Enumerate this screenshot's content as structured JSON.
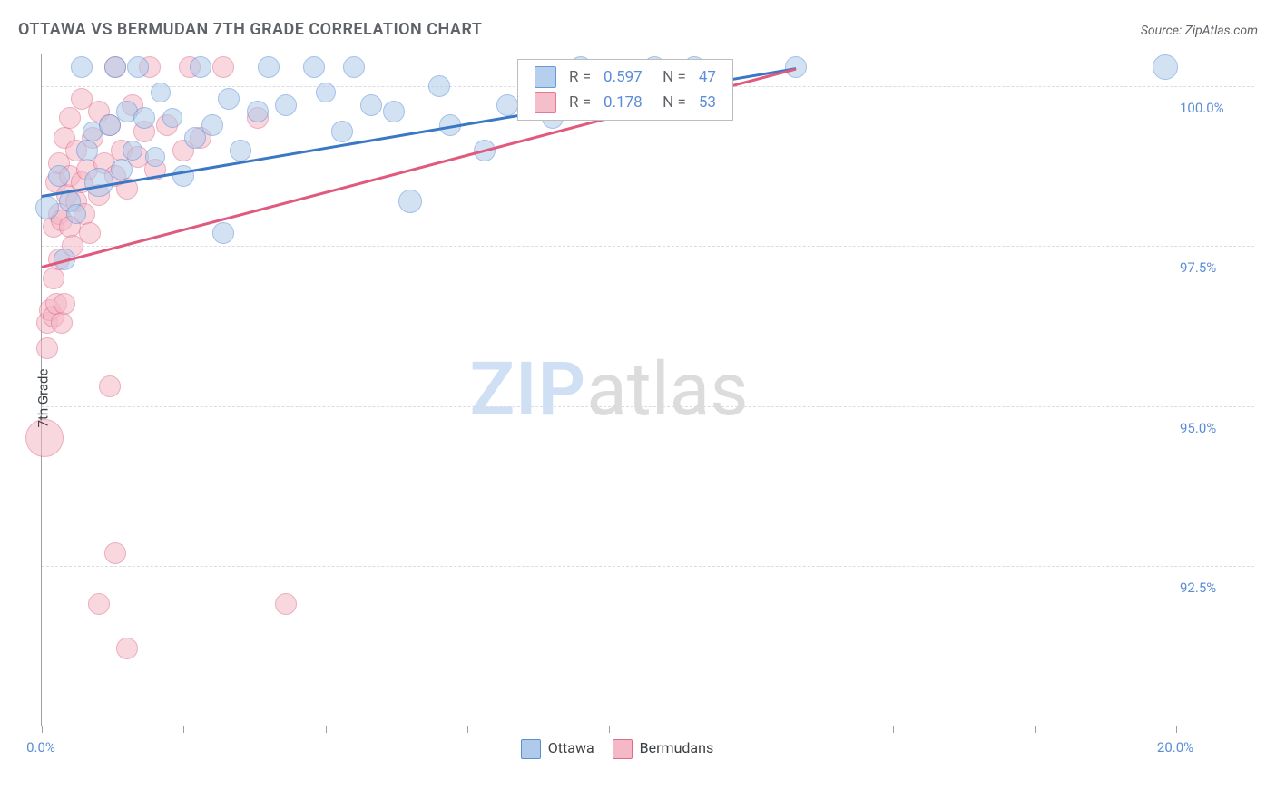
{
  "header": {
    "title": "OTTAWA VS BERMUDAN 7TH GRADE CORRELATION CHART",
    "source": "Source: ZipAtlas.com"
  },
  "watermark": {
    "prefix": "ZIP",
    "suffix": "atlas"
  },
  "chart": {
    "type": "scatter",
    "ylabel": "7th Grade",
    "background_color": "#ffffff",
    "grid_color": "#dadce0",
    "axis_color": "#9aa0a6",
    "label_color": "#5b8dd6",
    "text_color": "#5f6368",
    "xlim": [
      0,
      20
    ],
    "ylim": [
      90,
      100.5
    ],
    "xtick_positions": [
      0,
      2.5,
      5,
      7.5,
      10,
      12.5,
      15,
      17.5,
      20
    ],
    "xtick_labels": {
      "0": "0.0%",
      "20": "20.0%"
    },
    "ytick_positions": [
      92.5,
      95.0,
      97.5,
      100.0
    ],
    "ytick_labels": [
      "92.5%",
      "95.0%",
      "97.5%",
      "100.0%"
    ],
    "series": [
      {
        "name": "Ottawa",
        "fill": "#aecbeb",
        "stroke": "#5b8dd6",
        "fill_opacity": 0.55,
        "marker_radius": 11,
        "trend": {
          "x1": 0,
          "y1": 98.3,
          "x2": 13.3,
          "y2": 100.3,
          "color": "#3b78c4",
          "width": 3
        },
        "stats": {
          "R": "0.597",
          "N": "47"
        },
        "points": [
          [
            0.1,
            98.1,
            12
          ],
          [
            0.3,
            98.6,
            11
          ],
          [
            0.4,
            97.3,
            11
          ],
          [
            0.5,
            98.2,
            11
          ],
          [
            0.6,
            98.0,
            10
          ],
          [
            0.7,
            100.3,
            11
          ],
          [
            0.8,
            99.0,
            11
          ],
          [
            0.9,
            99.3,
            10
          ],
          [
            1.0,
            98.5,
            15
          ],
          [
            1.2,
            99.4,
            11
          ],
          [
            1.3,
            100.3,
            11
          ],
          [
            1.4,
            98.7,
            11
          ],
          [
            1.5,
            99.6,
            11
          ],
          [
            1.6,
            99.0,
            10
          ],
          [
            1.7,
            100.3,
            11
          ],
          [
            1.8,
            99.5,
            11
          ],
          [
            2.0,
            98.9,
            10
          ],
          [
            2.1,
            99.9,
            10
          ],
          [
            2.3,
            99.5,
            10
          ],
          [
            2.5,
            98.6,
            11
          ],
          [
            2.7,
            99.2,
            11
          ],
          [
            2.8,
            100.3,
            11
          ],
          [
            3.0,
            99.4,
            11
          ],
          [
            3.2,
            97.7,
            11
          ],
          [
            3.3,
            99.8,
            11
          ],
          [
            3.5,
            99.0,
            11
          ],
          [
            3.8,
            99.6,
            11
          ],
          [
            4.0,
            100.3,
            11
          ],
          [
            4.3,
            99.7,
            11
          ],
          [
            4.8,
            100.3,
            11
          ],
          [
            5.0,
            99.9,
            10
          ],
          [
            5.3,
            99.3,
            11
          ],
          [
            5.5,
            100.3,
            11
          ],
          [
            5.8,
            99.7,
            11
          ],
          [
            6.2,
            99.6,
            11
          ],
          [
            6.5,
            98.2,
            12
          ],
          [
            7.0,
            100.0,
            11
          ],
          [
            7.2,
            99.4,
            11
          ],
          [
            7.8,
            99.0,
            11
          ],
          [
            8.2,
            99.7,
            11
          ],
          [
            9.0,
            99.5,
            11
          ],
          [
            9.5,
            100.3,
            11
          ],
          [
            10.0,
            99.7,
            11
          ],
          [
            10.8,
            100.3,
            11
          ],
          [
            11.5,
            100.3,
            11
          ],
          [
            13.3,
            100.3,
            11
          ],
          [
            19.8,
            100.3,
            13
          ]
        ]
      },
      {
        "name": "Bermudans",
        "fill": "#f4b8c6",
        "stroke": "#e06b88",
        "fill_opacity": 0.55,
        "marker_radius": 11,
        "trend": {
          "x1": 0,
          "y1": 97.2,
          "x2": 13.3,
          "y2": 100.3,
          "color": "#e05a7e",
          "width": 3
        },
        "stats": {
          "R": "0.178",
          "N": "53"
        },
        "points": [
          [
            0.05,
            94.5,
            20
          ],
          [
            0.1,
            95.9,
            11
          ],
          [
            0.1,
            96.3,
            11
          ],
          [
            0.15,
            96.5,
            11
          ],
          [
            0.2,
            96.4,
            11
          ],
          [
            0.2,
            97.0,
            11
          ],
          [
            0.2,
            97.8,
            11
          ],
          [
            0.25,
            96.6,
            11
          ],
          [
            0.25,
            98.5,
            11
          ],
          [
            0.3,
            97.3,
            11
          ],
          [
            0.3,
            98.0,
            11
          ],
          [
            0.3,
            98.8,
            11
          ],
          [
            0.35,
            96.3,
            11
          ],
          [
            0.35,
            97.9,
            11
          ],
          [
            0.4,
            96.6,
            11
          ],
          [
            0.4,
            99.2,
            11
          ],
          [
            0.45,
            98.3,
            11
          ],
          [
            0.5,
            97.8,
            11
          ],
          [
            0.5,
            98.6,
            11
          ],
          [
            0.5,
            99.5,
            11
          ],
          [
            0.55,
            97.5,
            11
          ],
          [
            0.6,
            98.2,
            11
          ],
          [
            0.6,
            99.0,
            11
          ],
          [
            0.7,
            98.5,
            11
          ],
          [
            0.7,
            99.8,
            11
          ],
          [
            0.75,
            98.0,
            11
          ],
          [
            0.8,
            98.7,
            11
          ],
          [
            0.85,
            97.7,
            11
          ],
          [
            0.9,
            99.2,
            11
          ],
          [
            1.0,
            91.9,
            11
          ],
          [
            1.0,
            98.3,
            11
          ],
          [
            1.0,
            99.6,
            11
          ],
          [
            1.1,
            98.8,
            11
          ],
          [
            1.2,
            95.3,
            11
          ],
          [
            1.2,
            99.4,
            11
          ],
          [
            1.3,
            92.7,
            11
          ],
          [
            1.3,
            98.6,
            11
          ],
          [
            1.3,
            100.3,
            11
          ],
          [
            1.4,
            99.0,
            11
          ],
          [
            1.5,
            91.2,
            11
          ],
          [
            1.5,
            98.4,
            11
          ],
          [
            1.6,
            99.7,
            11
          ],
          [
            1.7,
            98.9,
            11
          ],
          [
            1.8,
            99.3,
            11
          ],
          [
            1.9,
            100.3,
            11
          ],
          [
            2.0,
            98.7,
            11
          ],
          [
            2.2,
            99.4,
            11
          ],
          [
            2.5,
            99.0,
            11
          ],
          [
            2.6,
            100.3,
            11
          ],
          [
            2.8,
            99.2,
            11
          ],
          [
            3.2,
            100.3,
            11
          ],
          [
            3.8,
            99.5,
            11
          ],
          [
            4.3,
            91.9,
            11
          ]
        ]
      }
    ],
    "legend_bottom": [
      "Ottawa",
      "Bermudans"
    ],
    "legend_top_labels": {
      "R_prefix": "R =",
      "N_prefix": "N ="
    }
  }
}
